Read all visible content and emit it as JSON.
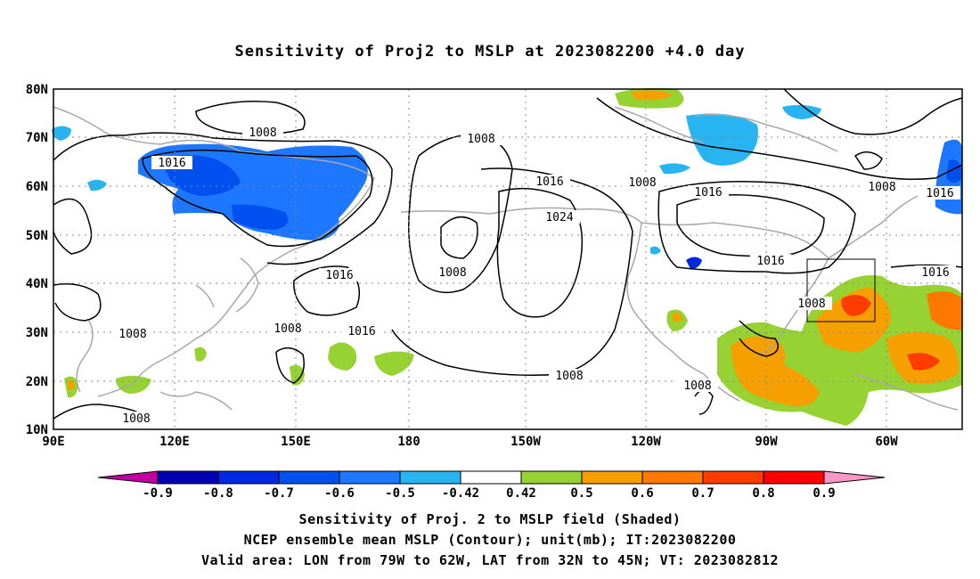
{
  "title": "Sensitivity of Proj2 to MSLP at 2023082200 +4.0 day",
  "map": {
    "lat_labels": [
      "80N",
      "70N",
      "60N",
      "50N",
      "40N",
      "30N",
      "20N",
      "10N"
    ],
    "lon_labels": [
      "90E",
      "120E",
      "150E",
      "180",
      "150W",
      "120W",
      "90W",
      "60W"
    ]
  },
  "contour_labels": [
    "1008",
    "1016",
    "1008",
    "1016",
    "1024",
    "1008",
    "1008",
    "1016",
    "1008",
    "1016",
    "1016",
    "1016",
    "1008",
    "1016",
    "1008",
    "1008",
    "1008",
    "1016",
    "1008",
    "1008"
  ],
  "colorbar": {
    "tick_labels": [
      "-0.9",
      "-0.8",
      "-0.7",
      "-0.6",
      "-0.5",
      "-0.42",
      "0.42",
      "0.5",
      "0.6",
      "0.7",
      "0.8",
      "0.9"
    ],
    "colors": [
      "#c000a0",
      "#0000b4",
      "#0028e0",
      "#0050f0",
      "#1e78ff",
      "#28b4f0",
      "#ffffff",
      "#96d232",
      "#f5a000",
      "#ff7800",
      "#ff3c00",
      "#ff0000",
      "#ff96c8"
    ]
  },
  "captions": [
    "Sensitivity of Proj. 2 to MSLP field (Shaded)",
    "NCEP ensemble mean MSLP (Contour); unit(mb); IT:2023082200",
    "Valid area: LON from 79W to 62W, LAT from 32N to 45N; VT: 2023082812"
  ]
}
